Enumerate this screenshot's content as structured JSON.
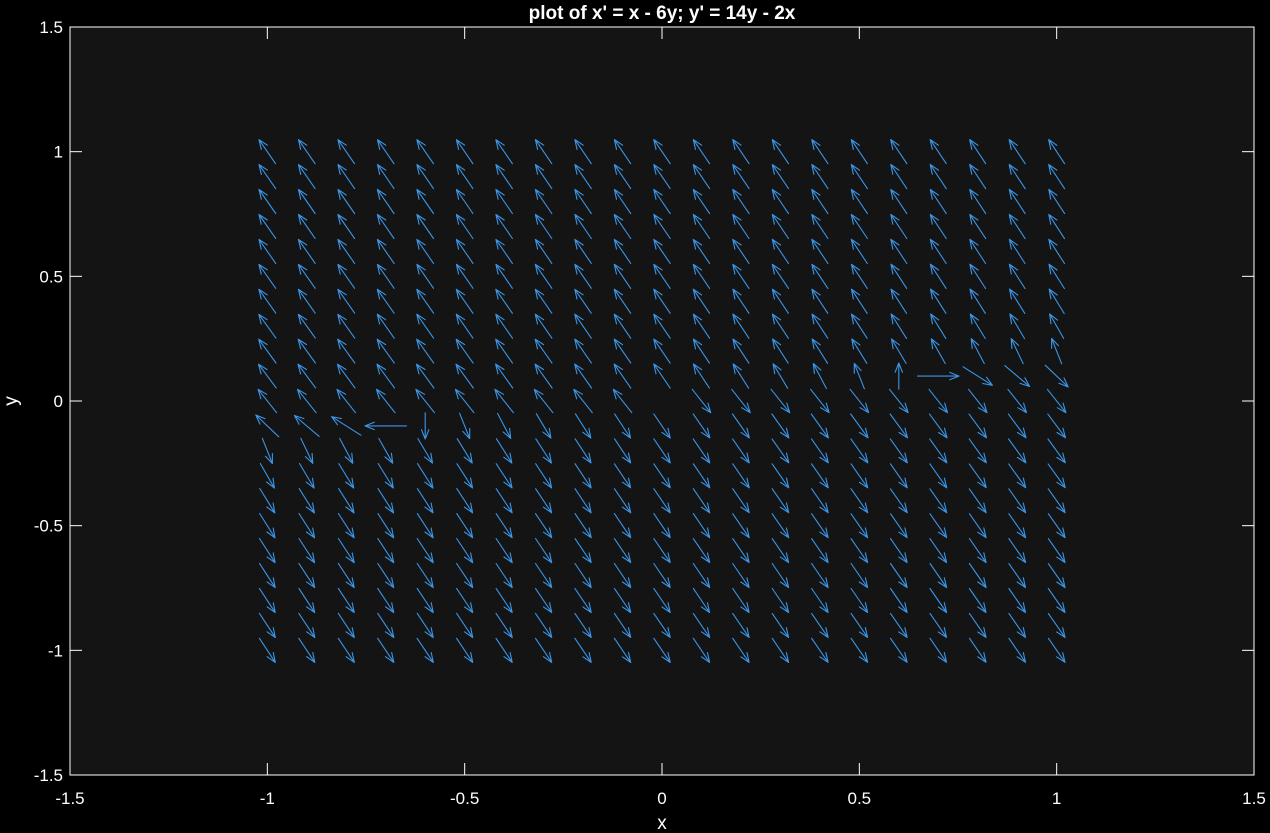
{
  "chart_data": {
    "type": "quiver",
    "title": "plot of x' = x - 6y; y' = 14y - 2x",
    "xlabel": "x",
    "ylabel": "y",
    "xlim": [
      -1.5,
      1.5
    ],
    "ylim": [
      -1.5,
      1.5
    ],
    "xticks": [
      -1.5,
      -1,
      -0.5,
      0,
      0.5,
      1,
      1.5
    ],
    "yticks": [
      -1.5,
      -1,
      -0.5,
      0,
      0.5,
      1,
      1.5
    ],
    "xtick_labels": [
      "-1.5",
      "-1",
      "-0.5",
      "0",
      "0.5",
      "1",
      "1.5"
    ],
    "ytick_labels": [
      "-1.5",
      "-1",
      "-0.5",
      "0",
      "0.5",
      "1",
      "1.5"
    ],
    "vector_field": {
      "dx": "x - 6y",
      "dy": "14y - 2x"
    },
    "grid_x": {
      "start": -1,
      "step": 0.1,
      "count": 21
    },
    "grid_y": {
      "start": -1,
      "step": 0.1,
      "count": 21
    },
    "arrow_length": 0.105,
    "colors": {
      "figure_background": "#000000",
      "axes_background": "#141414",
      "arrows": "#3b95e6",
      "axes": "#ffffff"
    },
    "grid": false,
    "legend": "none"
  }
}
